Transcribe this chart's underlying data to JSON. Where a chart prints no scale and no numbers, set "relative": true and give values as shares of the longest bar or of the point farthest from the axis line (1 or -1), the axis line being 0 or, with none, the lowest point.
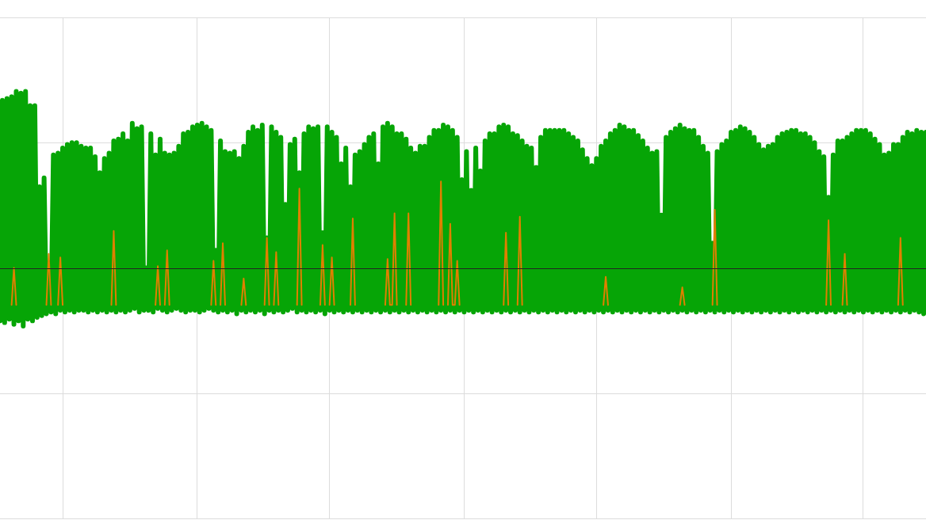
{
  "chart_data": {
    "type": "line",
    "relative": true,
    "grid": true,
    "categories": [
      null,
      null,
      null,
      null,
      null,
      null,
      null,
      null,
      null,
      null,
      null,
      null,
      null,
      null,
      null,
      null,
      null,
      null,
      null,
      null,
      null,
      null,
      null,
      null,
      null,
      null,
      null,
      null,
      null,
      null,
      null,
      null,
      null,
      null,
      null,
      null,
      null,
      null,
      null,
      null,
      null,
      null,
      null,
      null,
      null,
      null,
      null,
      null,
      null,
      null,
      null,
      null,
      null,
      null,
      null,
      null,
      null,
      null,
      null,
      null,
      null,
      null,
      null,
      null,
      null,
      null,
      null,
      null,
      null,
      null,
      null,
      null,
      null,
      null,
      null,
      null,
      null,
      null,
      null,
      null,
      null,
      null,
      null,
      null,
      null,
      null,
      null,
      null,
      null,
      null,
      null,
      null,
      null,
      null,
      null,
      null,
      null,
      null,
      null,
      null,
      null,
      null,
      null,
      null,
      null,
      null,
      null,
      null,
      null,
      null,
      null,
      null,
      null,
      null,
      null,
      null,
      null,
      null,
      null,
      null,
      null,
      null,
      null,
      null,
      null,
      null,
      null,
      null,
      null,
      null,
      null,
      null,
      null,
      null,
      null,
      null,
      null,
      null,
      null,
      null,
      null,
      null,
      null,
      null,
      null,
      null,
      null,
      null,
      null,
      null,
      null,
      null,
      null,
      null,
      null,
      null,
      null,
      null,
      null,
      null,
      null,
      null,
      null,
      null,
      null,
      null,
      null,
      null,
      null,
      null,
      null,
      null,
      null,
      null,
      null,
      null,
      null,
      null,
      null,
      null,
      null,
      null,
      null,
      null,
      null,
      null,
      null,
      null,
      null,
      null,
      null,
      null,
      null,
      null,
      null,
      null,
      null,
      null,
      null,
      null,
      null,
      null,
      null,
      null,
      null,
      null,
      null,
      null,
      null,
      null,
      null,
      null,
      null,
      null,
      null,
      null,
      null,
      null,
      null,
      null,
      null,
      null,
      null,
      null,
      null,
      null,
      null,
      null,
      null,
      null,
      null,
      null,
      null,
      null,
      null,
      null,
      null,
      null,
      null,
      null,
      null,
      null,
      null,
      null,
      null,
      null,
      null,
      null,
      null,
      null,
      null,
      null,
      null,
      null,
      null,
      null,
      null,
      null,
      null,
      null,
      null,
      null,
      null,
      null,
      null,
      null,
      null,
      null,
      null,
      null,
      null,
      null,
      null,
      null,
      null,
      null,
      null,
      null,
      null,
      null,
      null,
      null,
      null,
      null,
      null,
      null,
      null,
      null,
      null,
      null,
      null,
      null,
      null,
      null,
      null,
      null,
      null,
      null,
      null,
      null,
      null,
      null,
      null,
      null,
      null,
      null,
      null,
      null,
      null,
      null,
      null,
      null,
      null,
      null,
      null,
      null,
      null,
      null,
      null,
      null,
      null,
      null,
      null,
      null,
      null,
      null,
      null,
      null,
      null,
      null,
      null,
      null,
      null,
      null,
      null,
      null,
      null,
      null,
      null,
      null,
      null,
      null,
      null,
      null,
      null,
      null,
      null,
      null,
      null,
      null,
      null,
      null,
      null,
      null,
      null,
      null,
      null,
      null,
      null,
      null,
      null,
      null,
      null,
      null,
      null,
      null,
      null,
      null,
      null,
      null,
      null,
      null,
      null,
      null,
      null,
      null,
      null,
      null,
      null,
      null,
      null,
      null,
      null,
      null,
      null,
      null,
      null,
      null,
      null,
      null,
      null,
      null,
      null,
      null,
      null,
      null,
      null,
      null,
      null,
      null
    ],
    "series": [
      {
        "color": "#06a506",
        "values": [
          -0.3,
          0.95,
          -0.31,
          0.96,
          -0.29,
          0.97,
          -0.32,
          1.0,
          -0.3,
          0.99,
          -0.33,
          1.0,
          -0.29,
          0.92,
          -0.3,
          0.92,
          -0.28,
          0.46,
          -0.27,
          0.51,
          -0.26,
          0.03,
          -0.25,
          0.64,
          -0.26,
          0.65,
          -0.24,
          0.68,
          -0.25,
          0.7,
          -0.24,
          0.71,
          -0.25,
          0.71,
          -0.24,
          0.69,
          -0.24,
          0.68,
          -0.25,
          0.68,
          -0.24,
          0.63,
          -0.25,
          0.54,
          -0.24,
          0.62,
          -0.25,
          0.65,
          -0.24,
          0.72,
          -0.25,
          0.73,
          -0.24,
          0.76,
          -0.25,
          0.72,
          -0.24,
          0.82,
          -0.23,
          0.79,
          -0.25,
          0.8,
          -0.24,
          0.0,
          -0.24,
          0.76,
          -0.25,
          0.64,
          -0.23,
          0.73,
          -0.24,
          0.65,
          -0.25,
          0.64,
          -0.24,
          0.65,
          -0.23,
          0.69,
          -0.24,
          0.76,
          -0.25,
          0.77,
          -0.24,
          0.8,
          -0.24,
          0.81,
          -0.25,
          0.82,
          -0.24,
          0.8,
          -0.23,
          0.78,
          -0.24,
          0.1,
          -0.25,
          0.72,
          -0.24,
          0.66,
          -0.25,
          0.65,
          -0.24,
          0.66,
          -0.26,
          0.62,
          -0.24,
          0.69,
          -0.25,
          0.77,
          -0.24,
          0.8,
          -0.25,
          0.78,
          -0.24,
          0.81,
          -0.26,
          0.17,
          -0.24,
          0.8,
          -0.25,
          0.77,
          -0.24,
          0.74,
          -0.25,
          0.36,
          -0.24,
          0.7,
          -0.23,
          0.73,
          -0.25,
          0.54,
          -0.24,
          0.76,
          -0.25,
          0.8,
          -0.24,
          0.79,
          -0.25,
          0.8,
          -0.24,
          0.2,
          -0.26,
          0.8,
          -0.24,
          0.77,
          -0.25,
          0.74,
          -0.24,
          0.59,
          -0.25,
          0.68,
          -0.24,
          0.46,
          -0.25,
          0.64,
          -0.24,
          0.66,
          -0.25,
          0.7,
          -0.24,
          0.74,
          -0.25,
          0.76,
          -0.24,
          0.59,
          -0.25,
          0.8,
          -0.24,
          0.82,
          -0.25,
          0.8,
          -0.24,
          0.76,
          -0.25,
          0.76,
          -0.24,
          0.73,
          -0.25,
          0.68,
          -0.24,
          0.65,
          -0.25,
          0.69,
          -0.24,
          0.69,
          -0.25,
          0.74,
          -0.24,
          0.78,
          -0.25,
          0.78,
          -0.24,
          0.81,
          -0.25,
          0.8,
          -0.24,
          0.78,
          -0.25,
          0.74,
          -0.24,
          0.5,
          -0.25,
          0.66,
          -0.24,
          0.44,
          -0.25,
          0.68,
          -0.24,
          0.55,
          -0.25,
          0.72,
          -0.24,
          0.76,
          -0.25,
          0.76,
          -0.24,
          0.8,
          -0.25,
          0.81,
          -0.24,
          0.8,
          -0.25,
          0.76,
          -0.24,
          0.75,
          -0.25,
          0.72,
          -0.24,
          0.69,
          -0.25,
          0.68,
          -0.24,
          0.57,
          -0.25,
          0.74,
          -0.24,
          0.78,
          -0.25,
          0.78,
          -0.24,
          0.78,
          -0.25,
          0.78,
          -0.24,
          0.78,
          -0.25,
          0.76,
          -0.24,
          0.74,
          -0.25,
          0.72,
          -0.24,
          0.67,
          -0.25,
          0.62,
          -0.24,
          0.58,
          -0.25,
          0.62,
          -0.24,
          0.69,
          -0.25,
          0.72,
          -0.24,
          0.76,
          -0.25,
          0.78,
          -0.24,
          0.81,
          -0.25,
          0.8,
          -0.24,
          0.78,
          -0.25,
          0.78,
          -0.24,
          0.75,
          -0.25,
          0.72,
          -0.24,
          0.68,
          -0.25,
          0.65,
          -0.24,
          0.66,
          -0.25,
          0.3,
          -0.24,
          0.74,
          -0.25,
          0.77,
          -0.24,
          0.79,
          -0.25,
          0.81,
          -0.24,
          0.79,
          -0.25,
          0.78,
          -0.24,
          0.78,
          -0.25,
          0.74,
          -0.24,
          0.69,
          -0.25,
          0.65,
          -0.24,
          0.14,
          -0.25,
          0.66,
          -0.24,
          0.7,
          -0.25,
          0.72,
          -0.24,
          0.77,
          -0.25,
          0.78,
          -0.24,
          0.8,
          -0.25,
          0.79,
          -0.24,
          0.77,
          -0.25,
          0.74,
          -0.24,
          0.7,
          -0.25,
          0.67,
          -0.24,
          0.69,
          -0.25,
          0.7,
          -0.24,
          0.74,
          -0.25,
          0.76,
          -0.24,
          0.77,
          -0.25,
          0.78,
          -0.24,
          0.78,
          -0.25,
          0.76,
          -0.24,
          0.76,
          -0.25,
          0.74,
          -0.24,
          0.71,
          -0.25,
          0.66,
          -0.24,
          0.63,
          -0.25,
          0.4,
          -0.24,
          0.64,
          -0.25,
          0.72,
          -0.24,
          0.72,
          -0.25,
          0.74,
          -0.24,
          0.76,
          -0.25,
          0.78,
          -0.24,
          0.78,
          -0.25,
          0.78,
          -0.24,
          0.76,
          -0.25,
          0.73,
          -0.24,
          0.7,
          -0.25,
          0.64,
          -0.24,
          0.65,
          -0.25,
          0.7,
          -0.24,
          0.7,
          -0.25,
          0.74,
          -0.24,
          0.77,
          -0.25,
          0.76,
          -0.24,
          0.78,
          -0.25,
          0.77,
          -0.26,
          0.77
        ]
      },
      {
        "color": "#df8000",
        "values": [
          null,
          null,
          null,
          null,
          null,
          -0.21,
          0.0,
          -0.21,
          null,
          null,
          null,
          null,
          null,
          null,
          null,
          null,
          null,
          null,
          null,
          null,
          -0.21,
          0.08,
          -0.21,
          null,
          null,
          -0.21,
          0.06,
          -0.21,
          null,
          null,
          null,
          null,
          null,
          null,
          null,
          null,
          null,
          null,
          null,
          null,
          null,
          null,
          null,
          null,
          null,
          null,
          null,
          null,
          -0.21,
          0.21,
          -0.21,
          null,
          null,
          null,
          null,
          null,
          null,
          null,
          null,
          null,
          null,
          null,
          null,
          null,
          null,
          null,
          null,
          -0.21,
          0.01,
          -0.21,
          null,
          -0.21,
          0.1,
          -0.21,
          null,
          null,
          null,
          null,
          null,
          null,
          null,
          null,
          null,
          null,
          null,
          null,
          null,
          null,
          null,
          null,
          null,
          -0.21,
          0.04,
          -0.21,
          null,
          -0.21,
          0.14,
          -0.21,
          null,
          null,
          null,
          null,
          null,
          null,
          -0.21,
          -0.06,
          -0.21,
          null,
          null,
          null,
          null,
          null,
          null,
          null,
          -0.21,
          0.17,
          -0.21,
          null,
          -0.21,
          0.09,
          -0.21,
          null,
          null,
          null,
          null,
          null,
          null,
          null,
          -0.21,
          0.45,
          -0.21,
          null,
          null,
          null,
          null,
          null,
          null,
          null,
          -0.21,
          0.13,
          -0.21,
          null,
          -0.21,
          0.06,
          -0.21,
          null,
          null,
          null,
          null,
          null,
          null,
          -0.21,
          0.28,
          -0.21,
          null,
          null,
          null,
          null,
          null,
          null,
          null,
          null,
          null,
          null,
          null,
          null,
          -0.21,
          0.05,
          -0.21,
          -0.21,
          0.31,
          -0.21,
          null,
          null,
          null,
          -0.21,
          0.31,
          -0.21,
          null,
          null,
          null,
          null,
          null,
          null,
          null,
          null,
          null,
          null,
          null,
          -0.21,
          0.49,
          -0.21,
          null,
          -0.21,
          0.25,
          -0.21,
          -0.21,
          0.04,
          -0.21,
          null,
          null,
          null,
          null,
          null,
          null,
          null,
          null,
          null,
          null,
          null,
          null,
          null,
          null,
          null,
          null,
          null,
          null,
          -0.21,
          0.2,
          -0.21,
          null,
          null,
          null,
          -0.21,
          0.29,
          -0.21,
          null,
          null,
          null,
          null,
          null,
          null,
          null,
          null,
          null,
          null,
          null,
          null,
          null,
          null,
          null,
          null,
          null,
          null,
          null,
          null,
          null,
          null,
          null,
          null,
          null,
          null,
          null,
          null,
          null,
          null,
          null,
          null,
          null,
          null,
          -0.21,
          -0.05,
          -0.21,
          null,
          null,
          null,
          null,
          null,
          null,
          null,
          null,
          null,
          null,
          null,
          null,
          null,
          null,
          null,
          null,
          null,
          null,
          null,
          null,
          null,
          null,
          null,
          null,
          null,
          null,
          null,
          null,
          null,
          null,
          -0.21,
          -0.11,
          -0.21,
          null,
          null,
          null,
          null,
          null,
          null,
          null,
          null,
          null,
          null,
          null,
          -0.21,
          0.33,
          -0.21,
          null,
          null,
          null,
          null,
          null,
          null,
          null,
          null,
          null,
          null,
          null,
          null,
          null,
          null,
          null,
          null,
          null,
          null,
          null,
          null,
          null,
          null,
          null,
          null,
          null,
          null,
          null,
          null,
          null,
          null,
          null,
          null,
          null,
          null,
          null,
          null,
          null,
          null,
          null,
          null,
          null,
          null,
          null,
          null,
          null,
          null,
          -0.21,
          0.27,
          -0.21,
          null,
          null,
          null,
          null,
          -0.21,
          0.08,
          -0.21,
          null,
          null,
          null,
          null,
          null,
          null,
          null,
          null,
          null,
          null,
          null,
          null,
          null,
          null,
          null,
          null,
          null,
          null,
          null,
          null,
          null,
          -0.21,
          0.17,
          -0.21,
          null,
          null,
          null,
          null,
          null,
          null,
          null,
          null,
          null,
          null
        ]
      }
    ]
  }
}
